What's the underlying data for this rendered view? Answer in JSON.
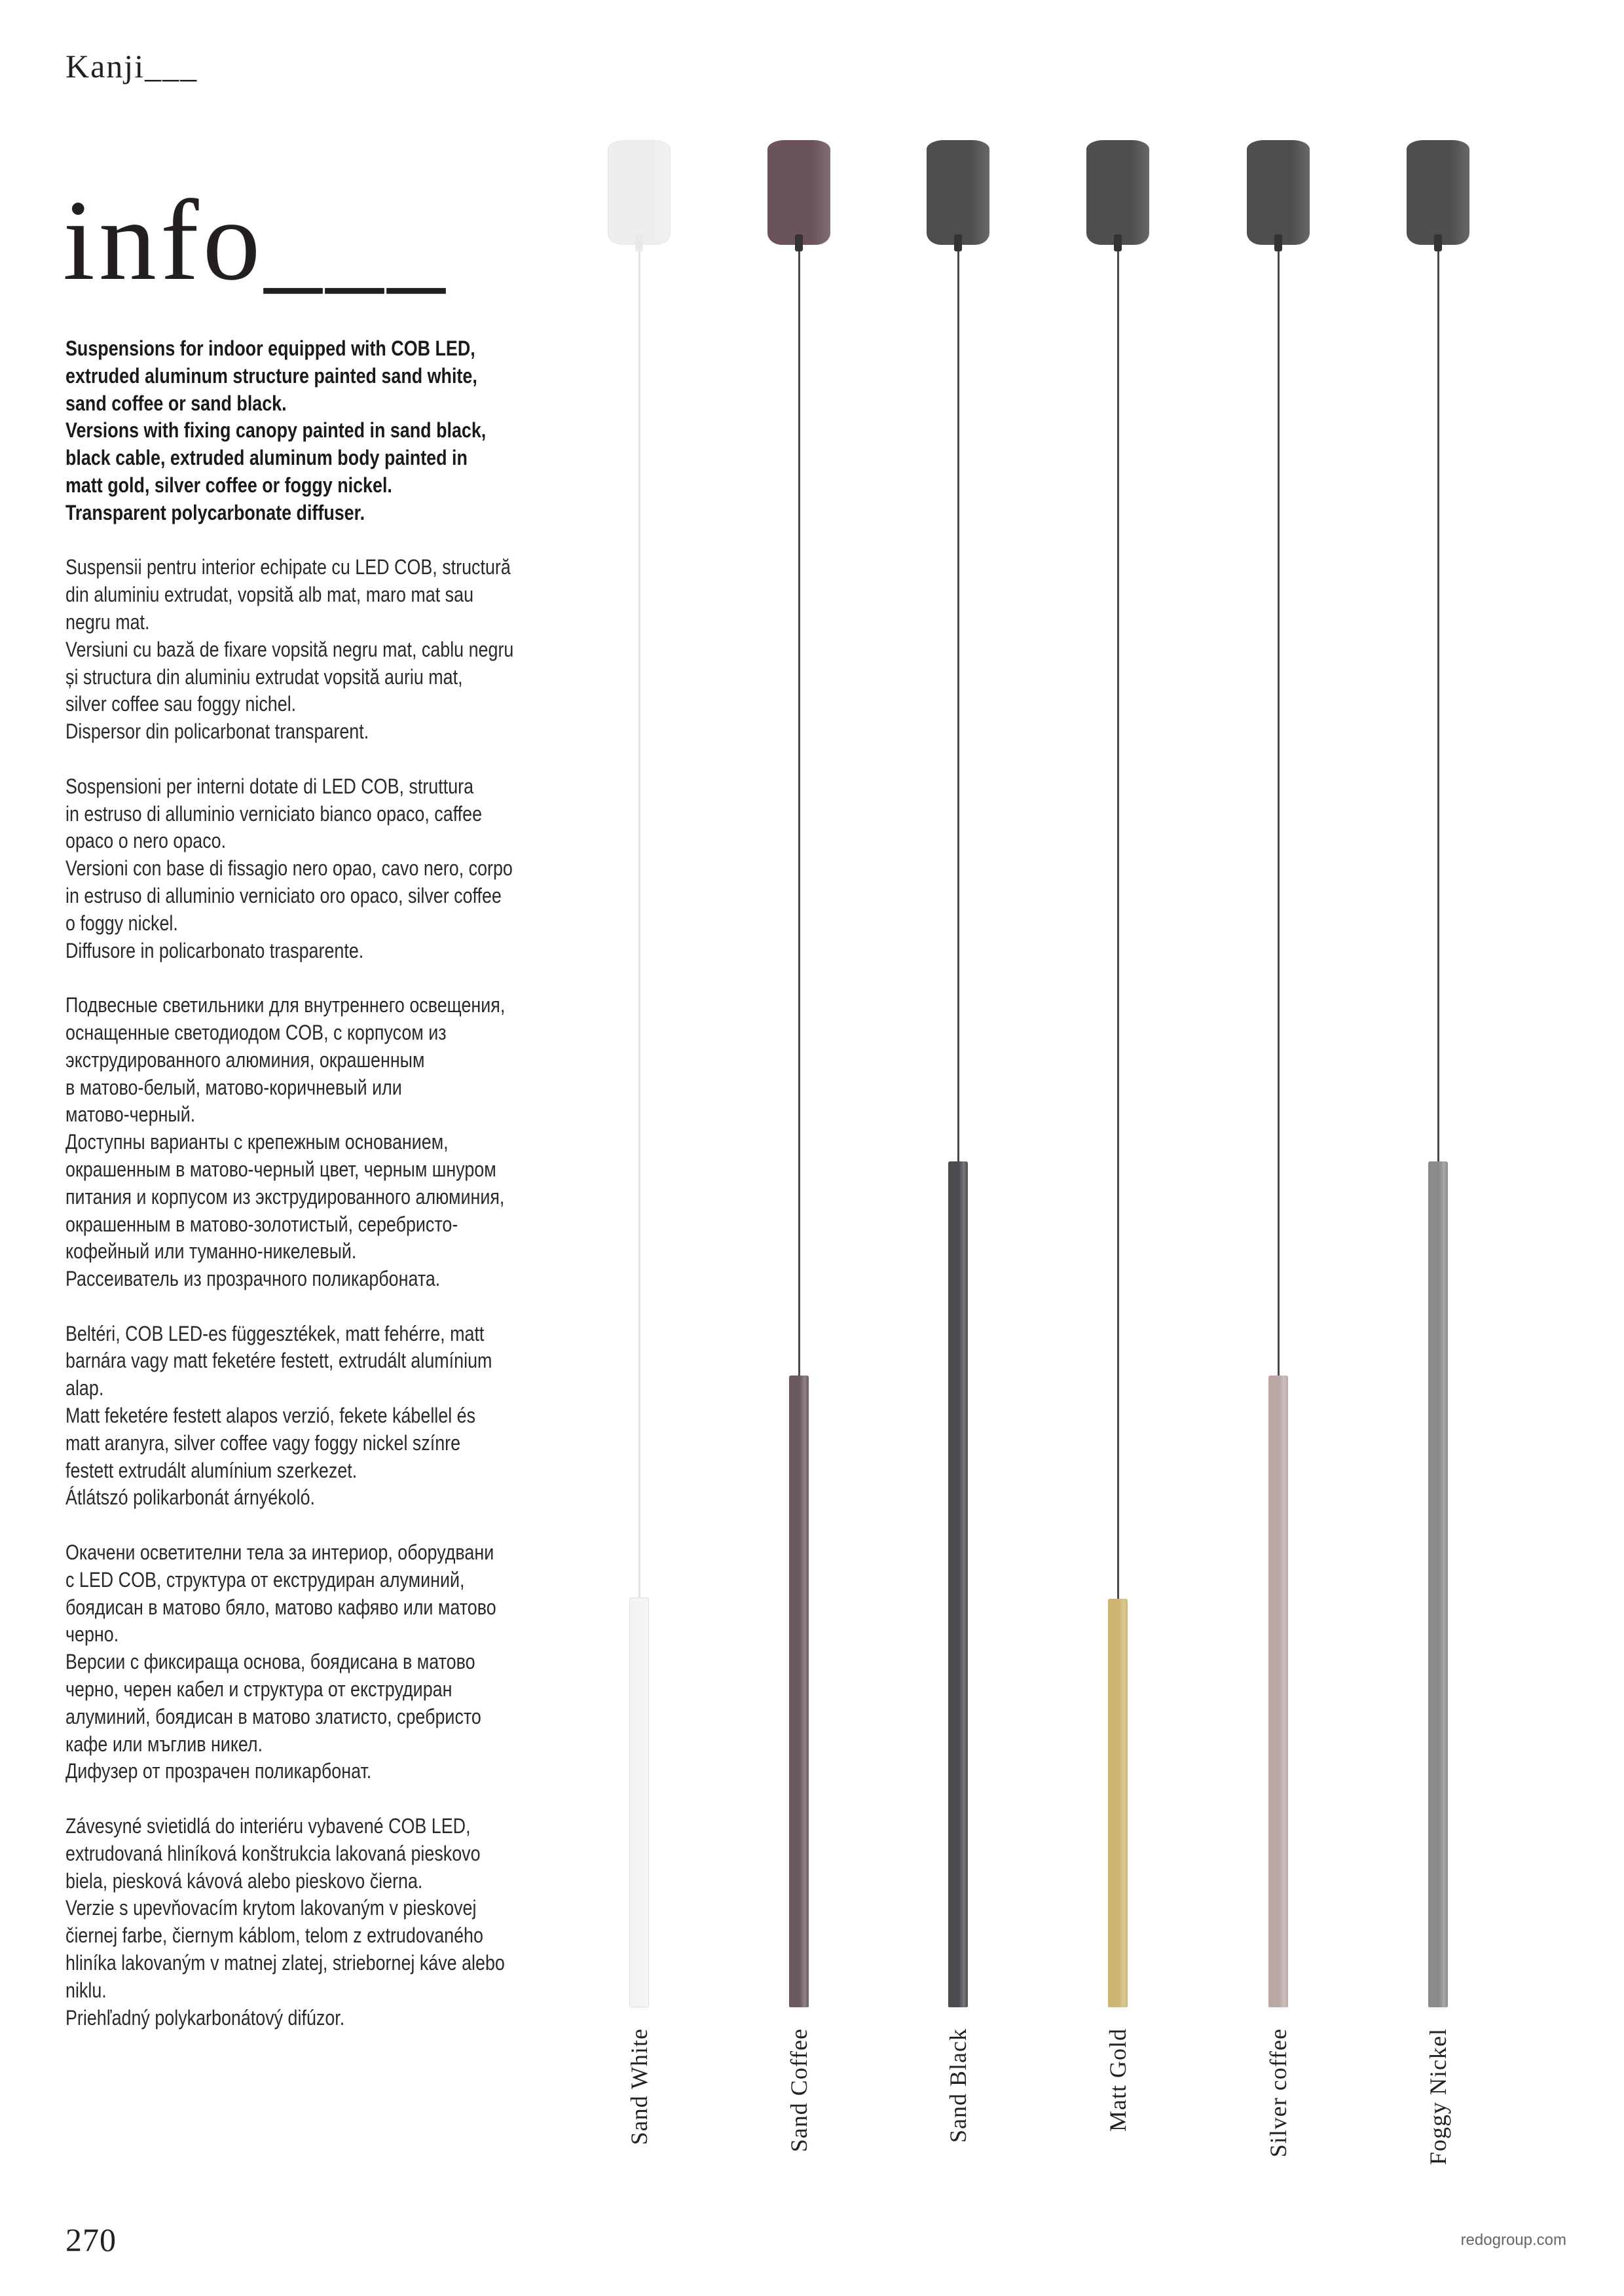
{
  "header": {
    "brand": "Kanji___",
    "title": "info___"
  },
  "description": [
    {
      "lang": "en",
      "bold": true,
      "text": "Suspensions for indoor equipped with COB LED,\nextruded aluminum structure painted sand white,\nsand coffee or sand black.\nVersions with fixing canopy painted in sand black,\nblack cable, extruded aluminum body painted in\nmatt gold, silver coffee or foggy nickel.\nTransparent polycarbonate diffuser."
    },
    {
      "lang": "ro",
      "bold": false,
      "text": "Suspensii pentru interior echipate cu LED COB, structură\ndin aluminiu extrudat, vopsită alb mat, maro mat sau\nnegru mat.\nVersiuni cu bază de fixare vopsită negru mat, cablu negru\nși structura din aluminiu extrudat vopsită auriu mat,\nsilver coffee sau foggy nichel.\n Dispersor din policarbonat transparent."
    },
    {
      "lang": "it",
      "bold": false,
      "text": "Sospensioni per interni dotate di LED COB, struttura\nin estruso di alluminio verniciato bianco opaco, caffee\nopaco o nero opaco.\nVersioni con base di fissagio nero opao, cavo nero, corpo\nin estruso di alluminio verniciato oro opaco, silver coffee\no foggy nickel.\nDiffusore in policarbonato trasparente."
    },
    {
      "lang": "ru",
      "bold": false,
      "text": "Подвесные светильники для внутреннего освещения,\nоснащенные светодиодом COB, с корпусом из\nэкструдированного алюминия, окрашенным\nв матово-белый, матово-коричневый или\nматово-черный.\nДоступны варианты с крепежным основанием,\nокрашенным в матово-черный цвет, черным шнуром\nпитания и корпусом из экструдированного алюминия,\nокрашенным в матово-золотистый, серебристо-\nкофейный или туманно-никелевый.\nРассеиватель из прозрачного поликарбоната."
    },
    {
      "lang": "hu",
      "bold": false,
      "text": "Beltéri, COB LED-es függesztékek, matt fehérre, matt\nbarnára vagy matt feketére festett, extrudált alumínium\nalap.\nMatt feketére festett alapos verzió, fekete kábellel és\nmatt aranyra, silver coffee vagy foggy nickel színre\nfestett extrudált alumínium szerkezet.\n Átlátszó polikarbonát árnyékoló."
    },
    {
      "lang": "bg",
      "bold": false,
      "text": "Окачени осветителни тела за интериор, оборудвани\nс LED COB, структура от екструдиран алуминий,\nбоядисан в матово бяло, матово кафяво или матово\nчерно.\nВерсии с фиксираща основа, боядисана в матово\nчерно, черен кабел и структура от екструдиран\nалуминий, боядисан в матово златисто, сребристо\nкафе или мъглив никел.\nДифузер от прозрачен поликарбонат."
    },
    {
      "lang": "sk",
      "bold": false,
      "text": "Závesyné svietidlá do interiéru vybavené COB LED,\nextrudovaná hliníková konštrukcia lakovaná pieskovo\nbiela, piesková kávová alebo pieskovo čierna.\nVerzie s upevňovacím krytom lakovaným v pieskovej\nčiernej farbe, čiernym káblom, telom z extrudovaného\nhliníka lakovaným v matnej zlatej, striebornej káve alebo\nniklu.\nPriehľadný polykarbonátový difúzor."
    }
  ],
  "finishes": [
    {
      "label": "Sand White",
      "canopy_color": "#eeeeee",
      "cord_color": "#e2e2e2",
      "body_color": "#f3f3f3"
    },
    {
      "label": "Sand Coffee",
      "canopy_color": "#6a545a",
      "cord_color": "#4a4a4a",
      "body_color": "#6d5a5f"
    },
    {
      "label": "Sand Black",
      "canopy_color": "#4d4e50",
      "cord_color": "#4a4a4a",
      "body_color": "#4a4b4e"
    },
    {
      "label": "Matt Gold",
      "canopy_color": "#4d4e50",
      "cord_color": "#4a4a4a",
      "body_color": "#cdb574"
    },
    {
      "label": "Silver coffee",
      "canopy_color": "#4d4e50",
      "cord_color": "#4a4a4a",
      "body_color": "#bba8a6"
    },
    {
      "label": "Foggy Nickel",
      "canopy_color": "#4d4e50",
      "cord_color": "#4a4a4a",
      "body_color": "#8b8b8c"
    }
  ],
  "footer": {
    "page_number": "270",
    "website": "redogroup.com"
  }
}
